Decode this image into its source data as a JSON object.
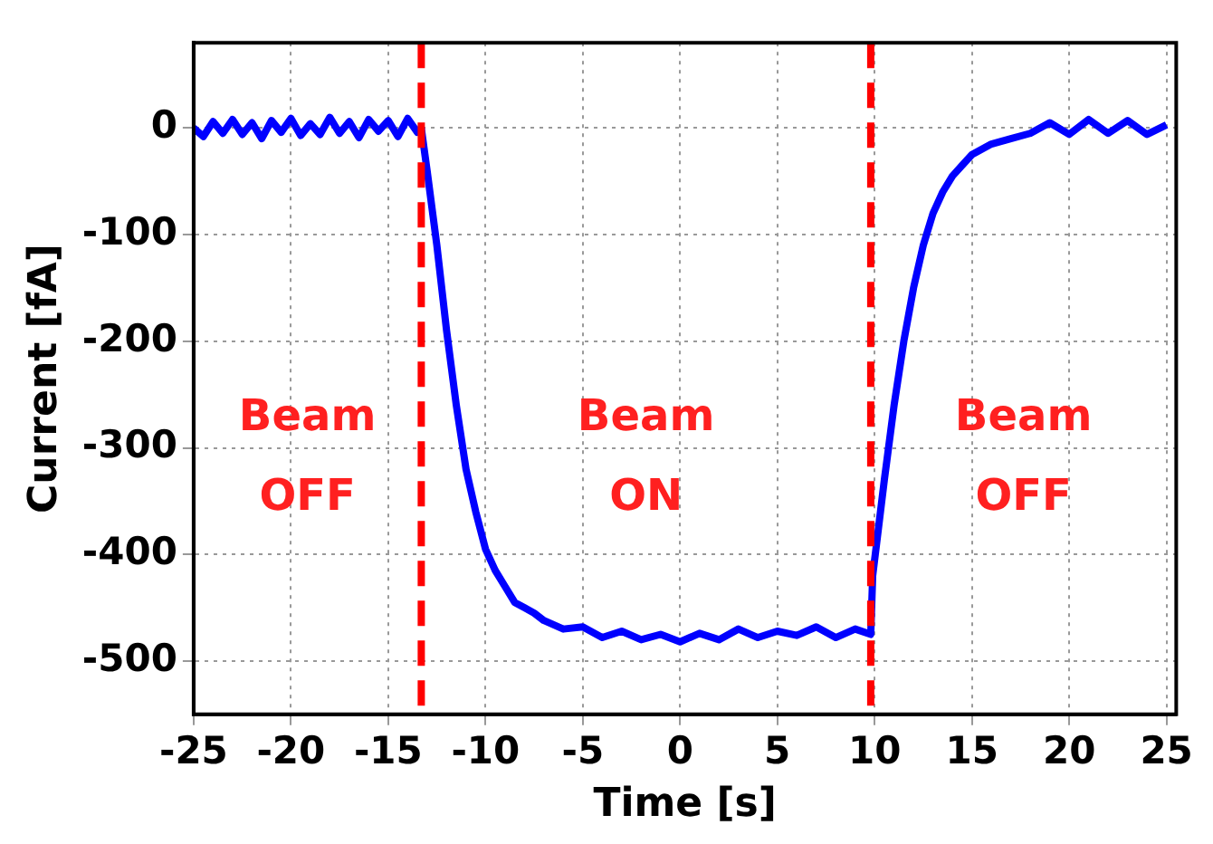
{
  "chart_data": {
    "type": "line",
    "xlabel": "Time [s]",
    "ylabel": "Current [fA]",
    "x": [
      -25,
      -24.5,
      -24,
      -23.5,
      -23,
      -22.5,
      -22,
      -21.5,
      -21,
      -20.5,
      -20,
      -19.5,
      -19,
      -18.5,
      -18,
      -17.5,
      -17,
      -16.5,
      -16,
      -15.5,
      -15,
      -14.5,
      -14,
      -13.5,
      -13.3,
      -13,
      -12.5,
      -12,
      -11.5,
      -11,
      -10.5,
      -10,
      -9.5,
      -9,
      -8.5,
      -8,
      -7.5,
      -7,
      -6,
      -5,
      -4,
      -3,
      -2,
      -1,
      0,
      1,
      2,
      3,
      4,
      5,
      6,
      7,
      8,
      9,
      9.8,
      9.9,
      10.5,
      11,
      11.5,
      12,
      12.5,
      13,
      13.5,
      14,
      14.5,
      15,
      16,
      17,
      18,
      19,
      20,
      21,
      22,
      23,
      24,
      25
    ],
    "series": [
      {
        "color": "#0000ff",
        "values": [
          0,
          -8,
          6,
          -5,
          8,
          -6,
          5,
          -10,
          7,
          -4,
          9,
          -7,
          4,
          -6,
          10,
          -5,
          6,
          -9,
          8,
          -3,
          7,
          -8,
          9,
          -4,
          0,
          -40,
          -110,
          -190,
          -260,
          -320,
          -360,
          -395,
          -415,
          -430,
          -445,
          -450,
          -455,
          -462,
          -470,
          -468,
          -478,
          -472,
          -480,
          -475,
          -482,
          -474,
          -480,
          -470,
          -478,
          -472,
          -476,
          -468,
          -478,
          -470,
          -475,
          -420,
          -330,
          -260,
          -200,
          -150,
          -110,
          -80,
          -60,
          -45,
          -35,
          -25,
          -15,
          -10,
          -5,
          5,
          -6,
          8,
          -5,
          7,
          -6,
          3
        ]
      }
    ],
    "xlim": [
      -25,
      25.5
    ],
    "xticks": [
      -25,
      -20,
      -15,
      -10,
      -5,
      0,
      5,
      10,
      15,
      20,
      25
    ],
    "ylim": [
      -550,
      80
    ],
    "yticks": [
      -500,
      -400,
      -300,
      -200,
      -100,
      0
    ],
    "grid": true,
    "legend": false,
    "marker": "none",
    "line_style": "solid",
    "ref_lines": [
      {
        "axis": "x",
        "value": -13.3,
        "color": "#ff0000",
        "line_style": "dashed"
      },
      {
        "axis": "x",
        "value": 9.8,
        "color": "#ff0000",
        "line_style": "dashed"
      }
    ],
    "annotations": [
      "Beam OFF",
      "Beam ON",
      "Beam OFF"
    ]
  }
}
